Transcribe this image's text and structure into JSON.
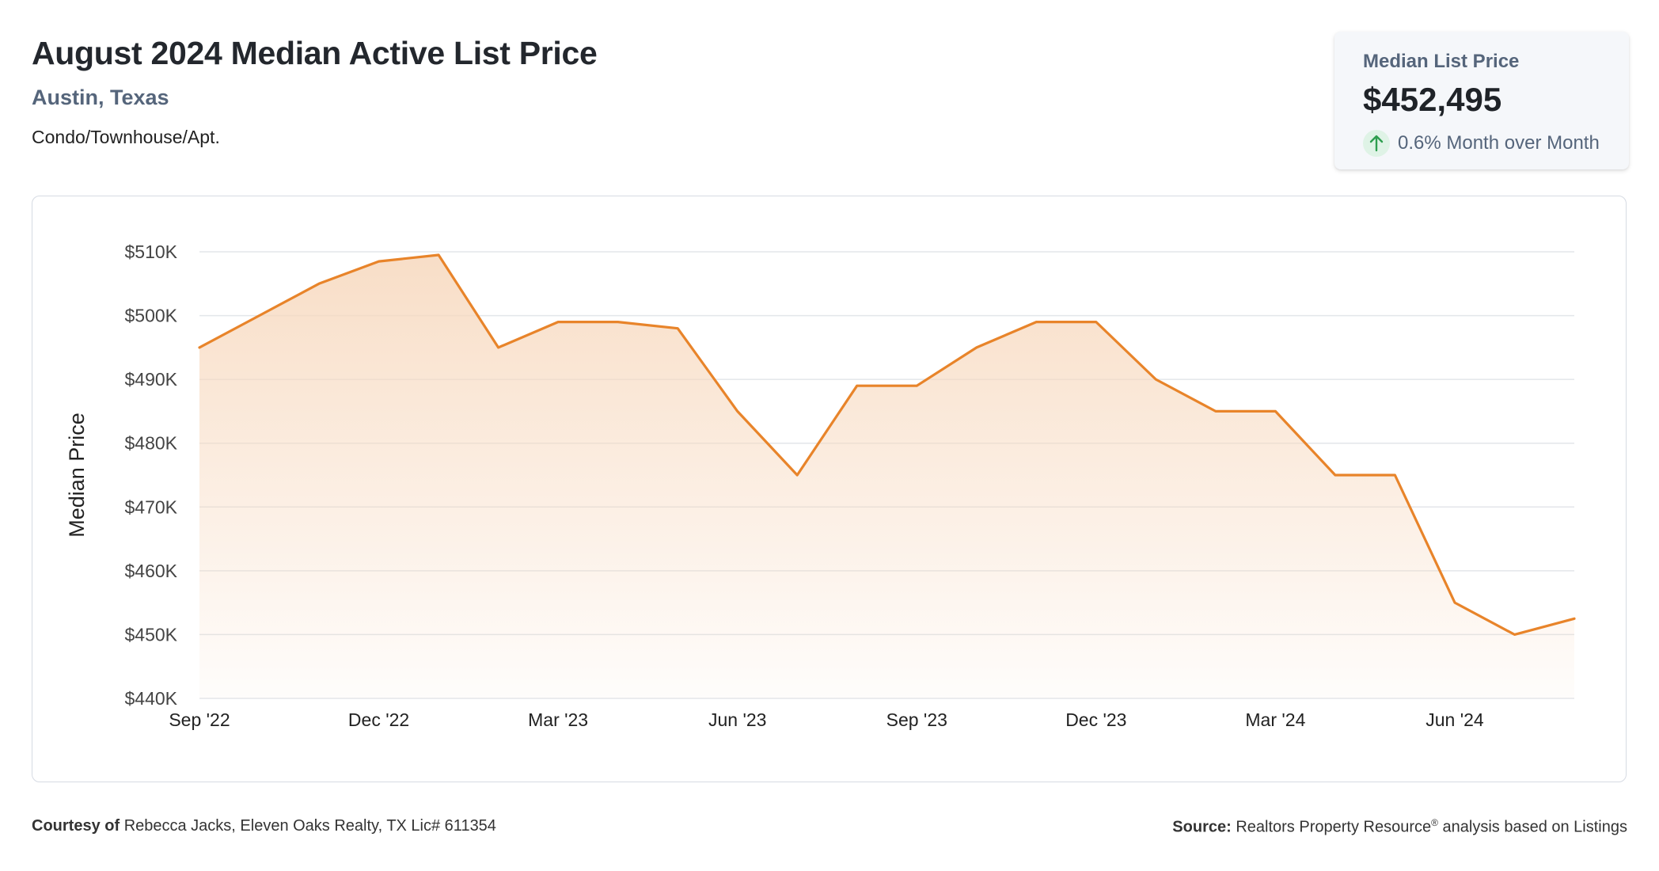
{
  "header": {
    "title": "August 2024 Median Active List Price",
    "location": "Austin, Texas",
    "property_type": "Condo/Townhouse/Apt."
  },
  "stat_card": {
    "label": "Median List Price",
    "value": "$452,495",
    "change": "0.6% Month over Month",
    "direction_icon": "arrow-up-icon"
  },
  "footer": {
    "courtesy_label": "Courtesy of",
    "courtesy_text": "Rebecca Jacks, Eleven Oaks Realty, TX Lic# 611354",
    "source_label": "Source:",
    "source_text": "Realtors Property Resource",
    "source_mark": "®",
    "source_suffix": "analysis based on Listings"
  },
  "colors": {
    "line": "#e8842a",
    "fill_top": "#f7d8bd",
    "grid": "#e3e6ea",
    "axis_text": "#444444",
    "arrow": "#2e9e4f"
  },
  "chart_data": {
    "type": "area",
    "ylabel": "Median Price",
    "xlabel": "",
    "ylim": [
      440000,
      510000
    ],
    "yticks": [
      440000,
      450000,
      460000,
      470000,
      480000,
      490000,
      500000,
      510000
    ],
    "ytick_labels": [
      "$440K",
      "$450K",
      "$460K",
      "$470K",
      "$480K",
      "$490K",
      "$500K",
      "$510K"
    ],
    "xtick_labels": [
      "Sep '22",
      "Dec '22",
      "Mar '23",
      "Jun '23",
      "Sep '23",
      "Dec '23",
      "Mar '24",
      "Jun '24"
    ],
    "xtick_months": [
      "2022-09",
      "2022-12",
      "2023-03",
      "2023-06",
      "2023-09",
      "2023-12",
      "2024-03",
      "2024-06"
    ],
    "grid": true,
    "series": [
      {
        "x": [
          "2022-09",
          "2022-10",
          "2022-11",
          "2022-12",
          "2023-01",
          "2023-02",
          "2023-03",
          "2023-04",
          "2023-05",
          "2023-06",
          "2023-07",
          "2023-08",
          "2023-09",
          "2023-10",
          "2023-11",
          "2023-12",
          "2024-01",
          "2024-02",
          "2024-03",
          "2024-04",
          "2024-05",
          "2024-06",
          "2024-07",
          "2024-08"
        ],
        "values": [
          495000,
          500000,
          505000,
          508500,
          509500,
          495000,
          499000,
          499000,
          498000,
          485000,
          475000,
          489000,
          489000,
          495000,
          499000,
          499000,
          490000,
          485000,
          485000,
          475000,
          475000,
          455000,
          450000,
          452495
        ]
      }
    ]
  }
}
